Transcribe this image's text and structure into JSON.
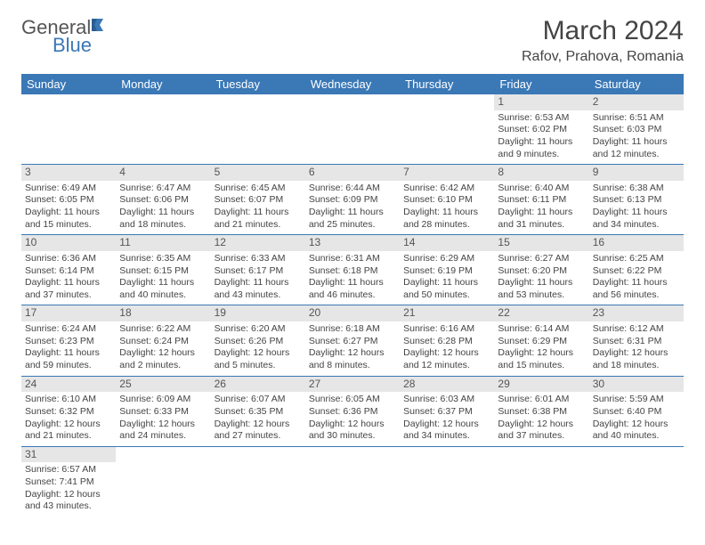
{
  "logo": {
    "word1": "General",
    "word2": "Blue"
  },
  "title": "March 2024",
  "location": "Rafov, Prahova, Romania",
  "header_bg": "#3a78b6",
  "daynum_bg": "#e6e6e6",
  "border_color": "#3a78b6",
  "weekdays": [
    "Sunday",
    "Monday",
    "Tuesday",
    "Wednesday",
    "Thursday",
    "Friday",
    "Saturday"
  ],
  "weeks": [
    [
      null,
      null,
      null,
      null,
      null,
      {
        "n": "1",
        "sr": "Sunrise: 6:53 AM",
        "ss": "Sunset: 6:02 PM",
        "dl": "Daylight: 11 hours and 9 minutes."
      },
      {
        "n": "2",
        "sr": "Sunrise: 6:51 AM",
        "ss": "Sunset: 6:03 PM",
        "dl": "Daylight: 11 hours and 12 minutes."
      }
    ],
    [
      {
        "n": "3",
        "sr": "Sunrise: 6:49 AM",
        "ss": "Sunset: 6:05 PM",
        "dl": "Daylight: 11 hours and 15 minutes."
      },
      {
        "n": "4",
        "sr": "Sunrise: 6:47 AM",
        "ss": "Sunset: 6:06 PM",
        "dl": "Daylight: 11 hours and 18 minutes."
      },
      {
        "n": "5",
        "sr": "Sunrise: 6:45 AM",
        "ss": "Sunset: 6:07 PM",
        "dl": "Daylight: 11 hours and 21 minutes."
      },
      {
        "n": "6",
        "sr": "Sunrise: 6:44 AM",
        "ss": "Sunset: 6:09 PM",
        "dl": "Daylight: 11 hours and 25 minutes."
      },
      {
        "n": "7",
        "sr": "Sunrise: 6:42 AM",
        "ss": "Sunset: 6:10 PM",
        "dl": "Daylight: 11 hours and 28 minutes."
      },
      {
        "n": "8",
        "sr": "Sunrise: 6:40 AM",
        "ss": "Sunset: 6:11 PM",
        "dl": "Daylight: 11 hours and 31 minutes."
      },
      {
        "n": "9",
        "sr": "Sunrise: 6:38 AM",
        "ss": "Sunset: 6:13 PM",
        "dl": "Daylight: 11 hours and 34 minutes."
      }
    ],
    [
      {
        "n": "10",
        "sr": "Sunrise: 6:36 AM",
        "ss": "Sunset: 6:14 PM",
        "dl": "Daylight: 11 hours and 37 minutes."
      },
      {
        "n": "11",
        "sr": "Sunrise: 6:35 AM",
        "ss": "Sunset: 6:15 PM",
        "dl": "Daylight: 11 hours and 40 minutes."
      },
      {
        "n": "12",
        "sr": "Sunrise: 6:33 AM",
        "ss": "Sunset: 6:17 PM",
        "dl": "Daylight: 11 hours and 43 minutes."
      },
      {
        "n": "13",
        "sr": "Sunrise: 6:31 AM",
        "ss": "Sunset: 6:18 PM",
        "dl": "Daylight: 11 hours and 46 minutes."
      },
      {
        "n": "14",
        "sr": "Sunrise: 6:29 AM",
        "ss": "Sunset: 6:19 PM",
        "dl": "Daylight: 11 hours and 50 minutes."
      },
      {
        "n": "15",
        "sr": "Sunrise: 6:27 AM",
        "ss": "Sunset: 6:20 PM",
        "dl": "Daylight: 11 hours and 53 minutes."
      },
      {
        "n": "16",
        "sr": "Sunrise: 6:25 AM",
        "ss": "Sunset: 6:22 PM",
        "dl": "Daylight: 11 hours and 56 minutes."
      }
    ],
    [
      {
        "n": "17",
        "sr": "Sunrise: 6:24 AM",
        "ss": "Sunset: 6:23 PM",
        "dl": "Daylight: 11 hours and 59 minutes."
      },
      {
        "n": "18",
        "sr": "Sunrise: 6:22 AM",
        "ss": "Sunset: 6:24 PM",
        "dl": "Daylight: 12 hours and 2 minutes."
      },
      {
        "n": "19",
        "sr": "Sunrise: 6:20 AM",
        "ss": "Sunset: 6:26 PM",
        "dl": "Daylight: 12 hours and 5 minutes."
      },
      {
        "n": "20",
        "sr": "Sunrise: 6:18 AM",
        "ss": "Sunset: 6:27 PM",
        "dl": "Daylight: 12 hours and 8 minutes."
      },
      {
        "n": "21",
        "sr": "Sunrise: 6:16 AM",
        "ss": "Sunset: 6:28 PM",
        "dl": "Daylight: 12 hours and 12 minutes."
      },
      {
        "n": "22",
        "sr": "Sunrise: 6:14 AM",
        "ss": "Sunset: 6:29 PM",
        "dl": "Daylight: 12 hours and 15 minutes."
      },
      {
        "n": "23",
        "sr": "Sunrise: 6:12 AM",
        "ss": "Sunset: 6:31 PM",
        "dl": "Daylight: 12 hours and 18 minutes."
      }
    ],
    [
      {
        "n": "24",
        "sr": "Sunrise: 6:10 AM",
        "ss": "Sunset: 6:32 PM",
        "dl": "Daylight: 12 hours and 21 minutes."
      },
      {
        "n": "25",
        "sr": "Sunrise: 6:09 AM",
        "ss": "Sunset: 6:33 PM",
        "dl": "Daylight: 12 hours and 24 minutes."
      },
      {
        "n": "26",
        "sr": "Sunrise: 6:07 AM",
        "ss": "Sunset: 6:35 PM",
        "dl": "Daylight: 12 hours and 27 minutes."
      },
      {
        "n": "27",
        "sr": "Sunrise: 6:05 AM",
        "ss": "Sunset: 6:36 PM",
        "dl": "Daylight: 12 hours and 30 minutes."
      },
      {
        "n": "28",
        "sr": "Sunrise: 6:03 AM",
        "ss": "Sunset: 6:37 PM",
        "dl": "Daylight: 12 hours and 34 minutes."
      },
      {
        "n": "29",
        "sr": "Sunrise: 6:01 AM",
        "ss": "Sunset: 6:38 PM",
        "dl": "Daylight: 12 hours and 37 minutes."
      },
      {
        "n": "30",
        "sr": "Sunrise: 5:59 AM",
        "ss": "Sunset: 6:40 PM",
        "dl": "Daylight: 12 hours and 40 minutes."
      }
    ],
    [
      {
        "n": "31",
        "sr": "Sunrise: 6:57 AM",
        "ss": "Sunset: 7:41 PM",
        "dl": "Daylight: 12 hours and 43 minutes."
      },
      null,
      null,
      null,
      null,
      null,
      null
    ]
  ]
}
